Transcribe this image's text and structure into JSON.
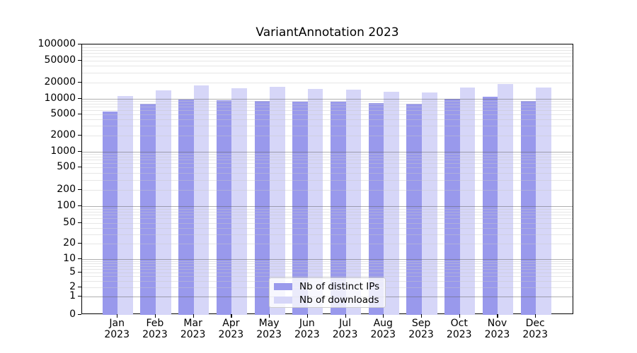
{
  "title": "VariantAnnotation 2023",
  "chart_data": {
    "type": "bar",
    "title": "VariantAnnotation 2023",
    "categories": [
      "Jan",
      "Feb",
      "Mar",
      "Apr",
      "May",
      "Jun",
      "Jul",
      "Aug",
      "Sep",
      "Oct",
      "Nov",
      "Dec"
    ],
    "year": "2023",
    "series": [
      {
        "name": "Nb of distinct IPs",
        "color": "#9999ec",
        "values": [
          5650,
          7900,
          9750,
          9400,
          9200,
          8900,
          8700,
          8250,
          8000,
          10000,
          11000,
          9200
        ]
      },
      {
        "name": "Nb of downloads",
        "color": "#d6d6f8",
        "values": [
          11200,
          14200,
          17500,
          15600,
          16500,
          15300,
          14500,
          13300,
          13100,
          15900,
          18700,
          16000
        ]
      }
    ],
    "xlabel": "",
    "ylabel": "",
    "yscale": "symlog",
    "ylim": [
      0,
      100000
    ],
    "y_ticks": [
      0,
      1,
      2,
      5,
      10,
      20,
      50,
      100,
      200,
      500,
      1000,
      2000,
      5000,
      10000,
      20000,
      50000,
      100000
    ],
    "grid": "horizontal",
    "legend_position": "lower center"
  },
  "legend": {
    "item1": "Nb of distinct IPs",
    "item2": "Nb of downloads"
  }
}
